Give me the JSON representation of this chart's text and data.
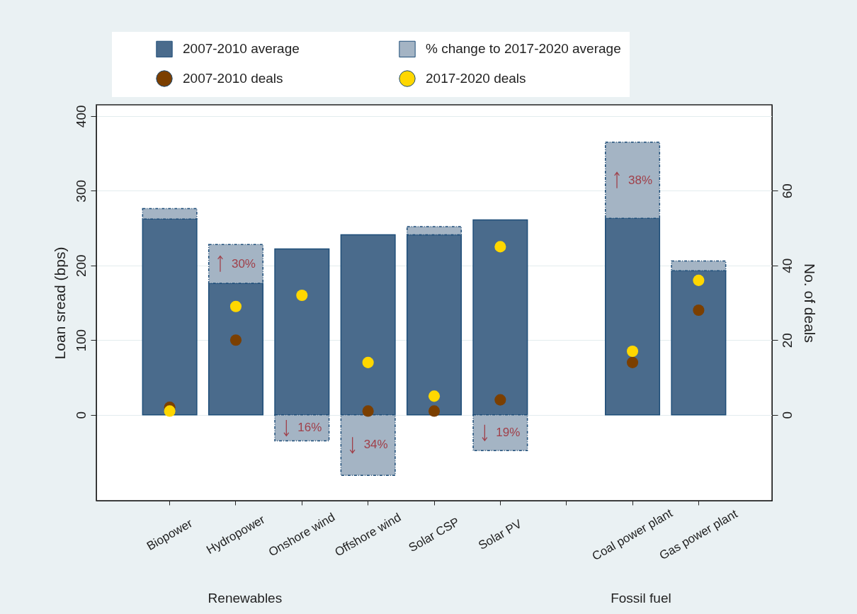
{
  "chart_data": {
    "type": "bar",
    "stacked": true,
    "ylabel": "Loan sread (bps)",
    "y2label": "No. of deals",
    "categories": [
      "Biopower",
      "Hydropower",
      "Onshore wind",
      "Offshore wind",
      "Solar CSP",
      "Solar PV",
      null,
      "Coal power plant",
      "Gas power plant"
    ],
    "series": [
      {
        "name": "2007-2010 average",
        "color": "#4a6b8c",
        "values": [
          262,
          176,
          222,
          241,
          241,
          261,
          null,
          263,
          193
        ]
      },
      {
        "name": "% change to 2017-2020 average",
        "color": "#a4b4c4",
        "line_style": "dashed",
        "values": [
          14,
          52,
          -35,
          -81,
          11,
          -48,
          null,
          102,
          13
        ]
      },
      {
        "name": "2007-2010 deals",
        "type": "scatter",
        "axis": "y2",
        "color": "#7b3f00",
        "values": [
          2,
          20,
          null,
          1,
          1,
          4,
          null,
          14,
          28
        ]
      },
      {
        "name": "2017-2020 deals",
        "type": "scatter",
        "axis": "y2",
        "color": "#ffd700",
        "values": [
          1,
          29,
          32,
          14,
          5,
          45,
          null,
          17,
          36
        ]
      }
    ],
    "ylim": [
      -115,
      415
    ],
    "yticks": [
      0,
      100,
      200,
      300,
      400
    ],
    "y2lim": [
      -23,
      83
    ],
    "y2ticks": [
      0,
      20,
      40,
      60
    ],
    "grid": "y",
    "legend": "top",
    "marker": "circle",
    "annotations": [
      {
        "text": "30%",
        "x": "Hydropower",
        "y": 228
      },
      {
        "text": "16%",
        "x": "Onshore wind",
        "y": -35
      },
      {
        "text": "34%",
        "x": "Offshore wind",
        "y": -81
      },
      {
        "text": "19%",
        "x": "Solar PV",
        "y": -48
      },
      {
        "text": "38%",
        "x": "Coal power plant",
        "y": 365
      },
      "Renewables",
      "Fossil fuel"
    ]
  }
}
